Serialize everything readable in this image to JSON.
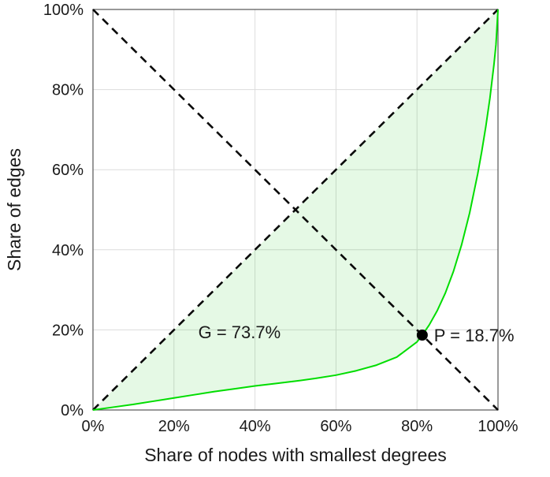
{
  "chart_data": {
    "type": "line",
    "title": "",
    "xlabel": "Share of nodes with smallest degrees",
    "ylabel": "Share of edges",
    "xlim": [
      0,
      100
    ],
    "ylim": [
      0,
      100
    ],
    "grid": true,
    "x_tick_values": [
      0,
      20,
      40,
      60,
      80,
      100
    ],
    "x_ticks": [
      "0%",
      "20%",
      "40%",
      "60%",
      "80%",
      "100%"
    ],
    "y_tick_values": [
      0,
      20,
      40,
      60,
      80,
      100
    ],
    "y_ticks": [
      "0%",
      "20%",
      "40%",
      "60%",
      "80%",
      "100%"
    ],
    "series": [
      {
        "name": "lorenz-curve",
        "color": "#00dd00",
        "style": "solid",
        "x": [
          0,
          5,
          10,
          15,
          20,
          25,
          30,
          35,
          40,
          45,
          50,
          55,
          60,
          65,
          70,
          75,
          80,
          81.3,
          83,
          85,
          87,
          89,
          91,
          93,
          95,
          96,
          97,
          98,
          99,
          99.5,
          100
        ],
        "y": [
          0,
          0.7,
          1.4,
          2.2,
          3.0,
          3.8,
          4.6,
          5.3,
          6.0,
          6.6,
          7.2,
          7.9,
          8.7,
          9.8,
          11.2,
          13.2,
          17.0,
          18.7,
          21.2,
          24.8,
          29.2,
          34.6,
          41.2,
          49.2,
          59.0,
          64.6,
          70.8,
          77.8,
          86.2,
          91.2,
          100
        ]
      },
      {
        "name": "equality-diagonal",
        "color": "#0a0a0a",
        "style": "dashed",
        "x": [
          0,
          100
        ],
        "y": [
          0,
          100
        ]
      },
      {
        "name": "anti-diagonal",
        "color": "#0a0a0a",
        "style": "dashed",
        "x": [
          0,
          100
        ],
        "y": [
          100,
          0
        ]
      }
    ],
    "fill_color": "#00c800",
    "fill_opacity": 0.1,
    "point": {
      "x": 81.3,
      "y": 18.7,
      "color": "#000000",
      "label": "P = 18.7%"
    },
    "gini": {
      "value_pct": 73.7,
      "label": "G = 73.7%"
    },
    "annotations": [
      {
        "id": "gini-label",
        "text": "G = 73.7%",
        "x": 26,
        "y": 19.5,
        "anchor": "start"
      },
      {
        "id": "p-label",
        "text": "P = 18.7%",
        "x": 84.2,
        "y": 18.7,
        "anchor": "start"
      }
    ],
    "legend": "none"
  }
}
